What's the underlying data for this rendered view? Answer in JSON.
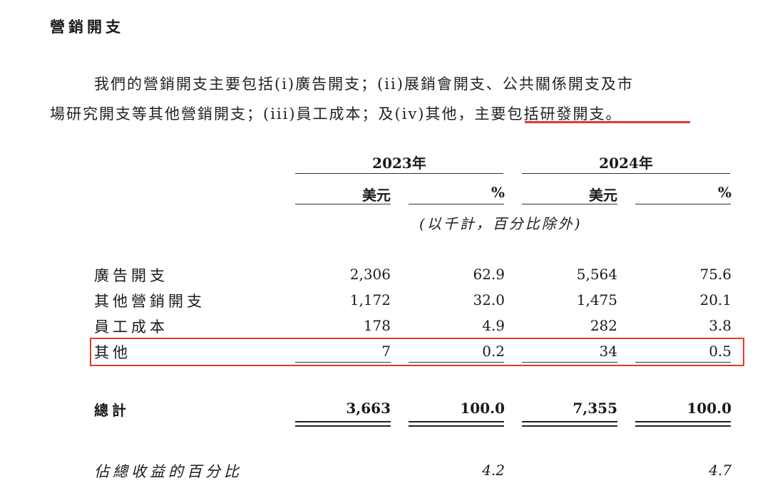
{
  "section": {
    "heading": "營銷開支"
  },
  "paragraph": {
    "line1": "我們的營銷開支主要包括(i)廣告開支；(ii)展銷會開支、公共關係開支及市",
    "line2": "場研究開支等其他營銷開支；(iii)員工成本；及(iv)其他，主要包括研發開支。"
  },
  "accent_color": "#e03a2c",
  "table": {
    "years": [
      "2023年",
      "2024年"
    ],
    "subheaders": [
      "美元",
      "%",
      "美元",
      "%"
    ],
    "unit_note": "(以千計，百分比除外)",
    "rows": [
      {
        "label": "廣告開支",
        "values": [
          "2,306",
          "62.9",
          "5,564",
          "75.6"
        ]
      },
      {
        "label": "其他營銷開支",
        "values": [
          "1,172",
          "32.0",
          "1,475",
          "20.1"
        ]
      },
      {
        "label": "員工成本",
        "values": [
          "178",
          "4.9",
          "282",
          "3.8"
        ]
      },
      {
        "label": "其他",
        "values": [
          "7",
          "0.2",
          "34",
          "0.5"
        ]
      }
    ],
    "total": {
      "label": "總計",
      "values": [
        "3,663",
        "100.0",
        "7,355",
        "100.0"
      ]
    },
    "revenue_pct": {
      "label": "佔總收益的百分比",
      "values": [
        "4.2",
        "4.7"
      ]
    }
  }
}
